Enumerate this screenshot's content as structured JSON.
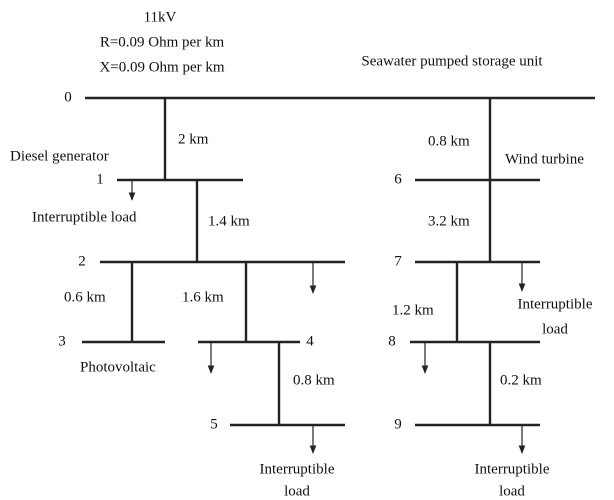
{
  "header": {
    "voltage": "11kV",
    "resistance": "R=0.09 Ohm per km",
    "reactance": "X=0.09 Ohm per km"
  },
  "buses": [
    {
      "label": "0"
    },
    {
      "label": "1"
    },
    {
      "label": "2"
    },
    {
      "label": "3"
    },
    {
      "label": "4"
    },
    {
      "label": "5"
    },
    {
      "label": "6"
    },
    {
      "label": "7"
    },
    {
      "label": "8"
    },
    {
      "label": "9"
    }
  ],
  "lines": [
    {
      "length": "2 km"
    },
    {
      "length": "1.4 km"
    },
    {
      "length": "0.6 km"
    },
    {
      "length": "1.6 km"
    },
    {
      "length": "0.8 km"
    },
    {
      "length": "0.8 km"
    },
    {
      "length": "3.2 km"
    },
    {
      "length": "1.2 km"
    },
    {
      "length": "0.2 km"
    }
  ],
  "components": [
    {
      "label": "Seawater pumped storage unit"
    },
    {
      "label": "Diesel generator"
    },
    {
      "label": "Interruptible load"
    },
    {
      "label": "Photovoltaic"
    },
    {
      "label": "Wind turbine"
    }
  ],
  "loads": [
    {
      "line1": "Interruptible",
      "line2": "load"
    },
    {
      "line1": "Interruptible",
      "line2": "load"
    },
    {
      "line1": "Interruptible",
      "line2": "load"
    }
  ]
}
